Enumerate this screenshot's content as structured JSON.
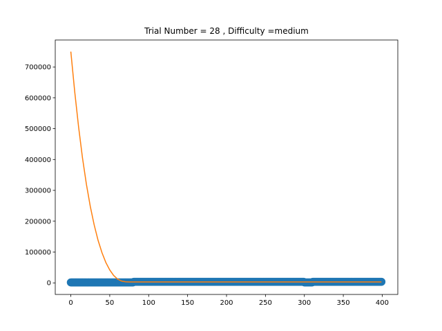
{
  "chart_data": {
    "type": "scatter",
    "title": "Trial Number = 28  , Difficulty =medium",
    "xlabel": "",
    "ylabel": "",
    "xlim": [
      -20,
      420
    ],
    "ylim": [
      -37500,
      787500
    ],
    "xticks": [
      0,
      50,
      100,
      150,
      200,
      250,
      300,
      350,
      400
    ],
    "yticks": [
      0,
      100000,
      200000,
      300000,
      400000,
      500000,
      600000,
      700000
    ],
    "xtick_labels": [
      "0",
      "50",
      "100",
      "150",
      "200",
      "250",
      "300",
      "350",
      "400"
    ],
    "ytick_labels": [
      "0",
      "100000",
      "200000",
      "300000",
      "400000",
      "500000",
      "600000",
      "700000"
    ],
    "grid": false,
    "series": [
      {
        "kind": "scatter",
        "color": "#1f77b4",
        "x_range": [
          0,
          399
        ],
        "x_step": 1,
        "values_summary": {
          "segments": [
            {
              "x": [
                0,
                80
              ],
              "y": 1500
            },
            {
              "x": [
                81,
                299
              ],
              "y": 3500
            },
            {
              "x": [
                300,
                310
              ],
              "y": 1500
            },
            {
              "x": [
                311,
                399
              ],
              "y": 3500
            }
          ]
        }
      },
      {
        "kind": "line",
        "color": "#ff7f0e",
        "points": [
          [
            0,
            750000
          ],
          [
            5,
            620000
          ],
          [
            10,
            505000
          ],
          [
            15,
            405000
          ],
          [
            20,
            320000
          ],
          [
            25,
            248000
          ],
          [
            30,
            188000
          ],
          [
            35,
            138000
          ],
          [
            40,
            98000
          ],
          [
            45,
            66000
          ],
          [
            50,
            42000
          ],
          [
            55,
            24000
          ],
          [
            60,
            12500
          ],
          [
            65,
            6000
          ],
          [
            70,
            3500
          ],
          [
            75,
            3000
          ],
          [
            80,
            3000
          ],
          [
            100,
            3000
          ],
          [
            150,
            3000
          ],
          [
            200,
            3000
          ],
          [
            250,
            3000
          ],
          [
            300,
            3000
          ],
          [
            350,
            3000
          ],
          [
            399,
            3000
          ]
        ]
      }
    ]
  }
}
